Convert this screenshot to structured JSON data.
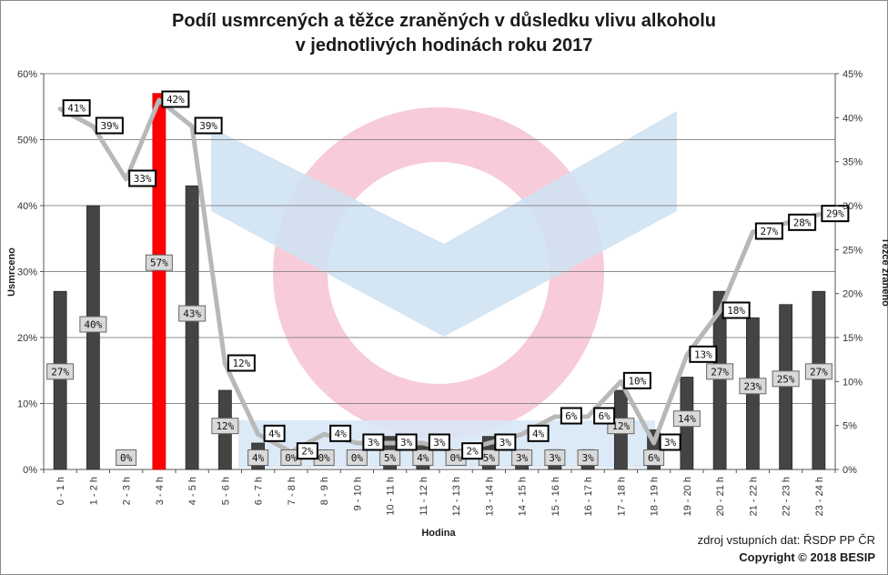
{
  "title_line1": "Podíl usmrcených a těžce zraněných v důsledku vlivu alkoholu",
  "title_line2": "v jednotlivých hodinách roku 2017",
  "source": "zdroj vstupních dat: ŘSDP PP ČR",
  "copyright": "Copyright © 2018  BESIP",
  "colors": {
    "bar": "#444444",
    "bar_highlight": "#ff0000",
    "line": "#b8b8b8",
    "grid": "#8c8c8c"
  },
  "chart_data": {
    "type": "bar",
    "xlabel": "Hodina",
    "ylabel_left": "Usmrceno",
    "ylabel_right": "Těžce zraněno",
    "ylim_left": [
      0,
      60
    ],
    "ylim_right": [
      0,
      45
    ],
    "yticks_left": [
      "0%",
      "10%",
      "20%",
      "30%",
      "40%",
      "50%",
      "60%"
    ],
    "yticks_right": [
      "0%",
      "5%",
      "10%",
      "15%",
      "20%",
      "25%",
      "30%",
      "35%",
      "40%",
      "45%"
    ],
    "grid": true,
    "categories": [
      "0 - 1 h",
      "1 - 2 h",
      "2 - 3 h",
      "3 - 4 h",
      "4 - 5 h",
      "5 - 6 h",
      "6 - 7 h",
      "7 - 8 h",
      "8 - 9 h",
      "9 - 10 h",
      "10 - 11 h",
      "11 - 12 h",
      "12 - 13 h",
      "13 - 14 h",
      "14 - 15 h",
      "15 - 16 h",
      "16 - 17 h",
      "17 - 18 h",
      "18 - 19 h",
      "19 - 20 h",
      "20 - 21 h",
      "21 - 22 h",
      "22 - 23 h",
      "23 - 24 h"
    ],
    "series": [
      {
        "type": "bar",
        "axis": "left",
        "values": [
          27,
          40,
          0,
          57,
          43,
          12,
          4,
          0,
          0,
          0,
          5,
          4,
          0,
          5,
          3,
          3,
          3,
          12,
          6,
          14,
          27,
          23,
          25,
          27
        ],
        "labels": [
          "27%",
          "40%",
          "0%",
          "57%",
          "43%",
          "12%",
          "4%",
          "0%",
          "0%",
          "0%",
          "5%",
          "4%",
          "0%",
          "5%",
          "3%",
          "3%",
          "3%",
          "12%",
          "6%",
          "14%",
          "27%",
          "23%",
          "25%",
          "27%"
        ],
        "highlight_index": 3
      },
      {
        "type": "line",
        "axis": "right",
        "values": [
          41,
          39,
          33,
          42,
          39,
          12,
          4,
          2,
          4,
          3,
          3,
          3,
          2,
          3,
          4,
          6,
          6,
          10,
          3,
          13,
          18,
          27,
          28,
          29
        ],
        "labels": [
          "41%",
          "39%",
          "33%",
          "42%",
          "39%",
          "12%",
          "4%",
          "2%",
          "4%",
          "3%",
          "3%",
          "3%",
          "2%",
          "3%",
          "4%",
          "6%",
          "6%",
          "10%",
          "3%",
          "13%",
          "18%",
          "27%",
          "28%",
          "29%"
        ]
      }
    ]
  }
}
